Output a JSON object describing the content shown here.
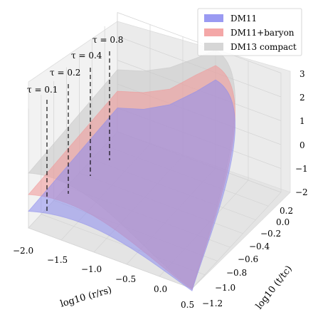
{
  "chart_data": {
    "type": "surface",
    "x_axis": {
      "label": "log10 (r/rs)",
      "ticks": [
        "−2.0",
        "−1.5",
        "−1.0",
        "−0.5",
        "0.0",
        "0.5"
      ],
      "range": [
        -2.0,
        0.5
      ]
    },
    "y_axis": {
      "label": "log10 (t/tc)",
      "ticks": [
        "−1.2",
        "−1.0",
        "−0.8",
        "−0.6",
        "−0.4",
        "−0.2",
        "0.0",
        "0.2"
      ],
      "range": [
        -1.2,
        0.2
      ]
    },
    "z_axis": {
      "ticks": [
        "−2",
        "−1",
        "0",
        "1",
        "2",
        "3"
      ],
      "range": [
        -2,
        3
      ]
    },
    "series": [
      {
        "name": "DM11",
        "color": "#7a7aee",
        "back_edge": [
          [
            -2.0,
            0.2,
            -1.0
          ],
          [
            -1.6,
            0.2,
            -0.65
          ],
          [
            -1.2,
            0.2,
            -0.05
          ],
          [
            -0.8,
            0.2,
            0.9
          ],
          [
            -0.5,
            0.2,
            1.7
          ]
        ],
        "front_edge": [
          [
            0.5,
            -1.2,
            -2.1
          ]
        ]
      },
      {
        "name": "DM11+baryon",
        "color": "#f08c8c",
        "back_edge": [
          [
            -2.0,
            0.2,
            -0.3
          ],
          [
            -1.6,
            0.2,
            0.05
          ],
          [
            -1.2,
            0.2,
            0.6
          ],
          [
            -0.8,
            0.2,
            1.6
          ],
          [
            -0.5,
            0.2,
            2.3
          ]
        ],
        "front_edge": [
          [
            0.5,
            -1.2,
            -2.05
          ]
        ]
      },
      {
        "name": "DM13 compact",
        "color": "#c0c0c0",
        "back_edge": [
          [
            -2.0,
            0.2,
            0.6
          ],
          [
            -1.6,
            0.2,
            0.95
          ],
          [
            -1.2,
            0.2,
            1.5
          ],
          [
            -0.8,
            0.2,
            2.3
          ],
          [
            -0.5,
            0.2,
            2.95
          ]
        ],
        "front_edge": [
          [
            0.5,
            -1.2,
            -2.0
          ]
        ]
      }
    ],
    "annotations": [
      "τ = 0.1",
      "τ = 0.2",
      "τ = 0.4",
      "τ = 0.8"
    ],
    "legend_position": "top-right",
    "grid": true
  }
}
